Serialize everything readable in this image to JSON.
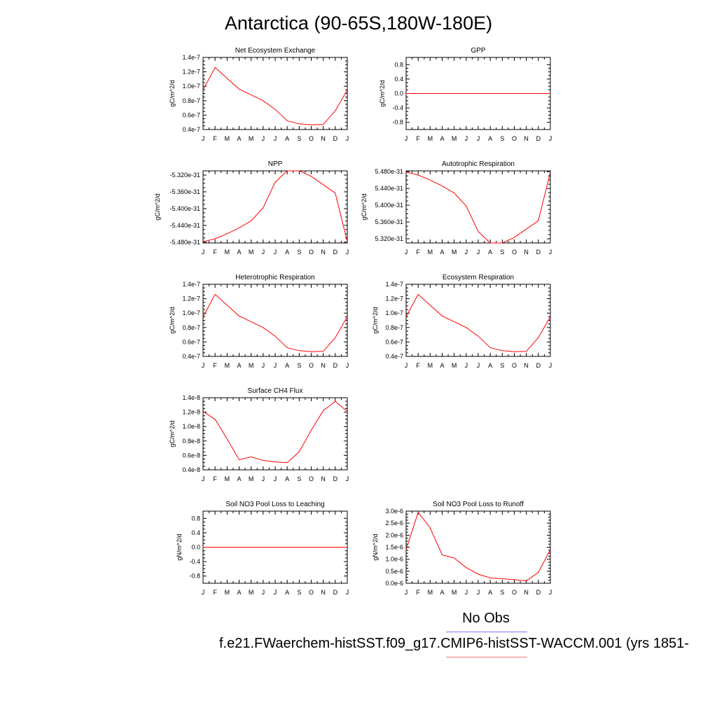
{
  "page": {
    "title": "Antarctica (90-65S,180W-180E)",
    "legend_obs": "No Obs",
    "legend_case": "f.e21.FWaerchem-histSST.f09_g17.CMIP6-histSST-WACCM.001 (yrs 1851-",
    "obs_color": "#7b7bef",
    "case_color": "#ef7b7b",
    "line_color": "#ff0000"
  },
  "chart_data": [
    {
      "type": "line",
      "title": "Net Ecosystem Exchange",
      "ylabel": "gC/m^2/d",
      "categories": [
        "J",
        "F",
        "M",
        "A",
        "M",
        "J",
        "J",
        "A",
        "S",
        "O",
        "N",
        "D",
        "J"
      ],
      "y_tick_labels": [
        "0.4e-7",
        "0.6e-7",
        "0.8e-7",
        "1.0e-7",
        "1.2e-7",
        "1.4e-7"
      ],
      "y_ticks": [
        4e-08,
        6e-08,
        8e-08,
        1e-07,
        1.2e-07,
        1.4e-07
      ],
      "ylim": [
        4e-08,
        1.4e-07
      ],
      "series": [
        {
          "values": [
            9.5e-08,
            1.26e-07,
            1.11e-07,
            9.6e-08,
            8.8e-08,
            8e-08,
            6.8e-08,
            5.2e-08,
            4.8e-08,
            4.65e-08,
            4.7e-08,
            6.6e-08,
            9.5e-08
          ]
        }
      ]
    },
    {
      "type": "line",
      "title": "GPP",
      "ylabel": "gC/m^2/d",
      "categories": [
        "J",
        "F",
        "M",
        "A",
        "M",
        "J",
        "J",
        "A",
        "S",
        "O",
        "N",
        "D",
        "J"
      ],
      "y_tick_labels": [
        "-0.8",
        "-0.4",
        "0.0",
        "0.4",
        "0.8"
      ],
      "y_ticks": [
        -0.8,
        -0.4,
        0.0,
        0.4,
        0.8
      ],
      "ylim": [
        -1.0,
        1.0
      ],
      "series": [
        {
          "values": [
            0,
            0,
            0,
            0,
            0,
            0,
            0,
            0,
            0,
            0,
            0,
            0,
            0
          ]
        }
      ]
    },
    {
      "type": "line",
      "title": "NPP",
      "ylabel": "gC/m^2/d",
      "categories": [
        "J",
        "F",
        "M",
        "A",
        "M",
        "J",
        "J",
        "A",
        "S",
        "O",
        "N",
        "D",
        "J"
      ],
      "y_tick_labels": [
        "-5.480e-31",
        "-5.440e-31",
        "-5.400e-31",
        "-5.360e-31",
        "-5.320e-31"
      ],
      "y_ticks": [
        -5.48e-31,
        -5.44e-31,
        -5.4e-31,
        -5.36e-31,
        -5.32e-31
      ],
      "ylim": [
        -5.482e-31,
        -5.31e-31
      ],
      "series": [
        {
          "values": [
            -5.479e-31,
            -5.472e-31,
            -5.46e-31,
            -5.446e-31,
            -5.429e-31,
            -5.398e-31,
            -5.337e-31,
            -5.31e-31,
            -5.31e-31,
            -5.323e-31,
            -5.343e-31,
            -5.363e-31,
            -5.479e-31
          ]
        }
      ]
    },
    {
      "type": "line",
      "title": "Autotrophic Respiration",
      "ylabel": "gC/m^2/d",
      "categories": [
        "J",
        "F",
        "M",
        "A",
        "M",
        "J",
        "J",
        "A",
        "S",
        "O",
        "N",
        "D",
        "J"
      ],
      "y_tick_labels": [
        "5.320e-31",
        "5.360e-31",
        "5.400e-31",
        "5.440e-31",
        "5.480e-31"
      ],
      "y_ticks": [
        5.32e-31,
        5.36e-31,
        5.4e-31,
        5.44e-31,
        5.48e-31
      ],
      "ylim": [
        5.31e-31,
        5.482e-31
      ],
      "series": [
        {
          "values": [
            5.479e-31,
            5.472e-31,
            5.46e-31,
            5.446e-31,
            5.429e-31,
            5.398e-31,
            5.337e-31,
            5.31e-31,
            5.31e-31,
            5.323e-31,
            5.343e-31,
            5.363e-31,
            5.479e-31
          ]
        }
      ]
    },
    {
      "type": "line",
      "title": "Heterotrophic Respiration",
      "ylabel": "gC/m^2/d",
      "categories": [
        "J",
        "F",
        "M",
        "A",
        "M",
        "J",
        "J",
        "A",
        "S",
        "O",
        "N",
        "D",
        "J"
      ],
      "y_tick_labels": [
        "0.4e-7",
        "0.6e-7",
        "0.8e-7",
        "1.0e-7",
        "1.2e-7",
        "1.4e-7"
      ],
      "y_ticks": [
        4e-08,
        6e-08,
        8e-08,
        1e-07,
        1.2e-07,
        1.4e-07
      ],
      "ylim": [
        4e-08,
        1.4e-07
      ],
      "series": [
        {
          "values": [
            9.5e-08,
            1.26e-07,
            1.11e-07,
            9.6e-08,
            8.8e-08,
            8e-08,
            6.8e-08,
            5.2e-08,
            4.8e-08,
            4.65e-08,
            4.7e-08,
            6.6e-08,
            9.5e-08
          ]
        }
      ]
    },
    {
      "type": "line",
      "title": "Ecosystem Respiration",
      "ylabel": "gC/m^2/d",
      "categories": [
        "J",
        "F",
        "M",
        "A",
        "M",
        "J",
        "J",
        "A",
        "S",
        "O",
        "N",
        "D",
        "J"
      ],
      "y_tick_labels": [
        "0.4e-7",
        "0.6e-7",
        "0.8e-7",
        "1.0e-7",
        "1.2e-7",
        "1.4e-7"
      ],
      "y_ticks": [
        4e-08,
        6e-08,
        8e-08,
        1e-07,
        1.2e-07,
        1.4e-07
      ],
      "ylim": [
        4e-08,
        1.4e-07
      ],
      "series": [
        {
          "values": [
            9.5e-08,
            1.26e-07,
            1.11e-07,
            9.6e-08,
            8.8e-08,
            8e-08,
            6.8e-08,
            5.2e-08,
            4.8e-08,
            4.65e-08,
            4.7e-08,
            6.6e-08,
            9.5e-08
          ]
        }
      ]
    },
    {
      "type": "line",
      "title": "Surface CH4 Flux",
      "ylabel": "gC/m^2/d",
      "categories": [
        "J",
        "F",
        "M",
        "A",
        "M",
        "J",
        "J",
        "A",
        "S",
        "O",
        "N",
        "D",
        "J"
      ],
      "y_tick_labels": [
        "0.4e-8",
        "0.6e-8",
        "0.8e-8",
        "1.0e-8",
        "1.2e-8",
        "1.4e-8"
      ],
      "y_ticks": [
        4e-09,
        6e-09,
        8e-09,
        1e-08,
        1.2e-08,
        1.4e-08
      ],
      "ylim": [
        4e-09,
        1.4e-08
      ],
      "series": [
        {
          "values": [
            1.21e-08,
            1.1e-08,
            8.3e-09,
            5.4e-09,
            5.8e-09,
            5.3e-09,
            5.1e-09,
            5e-09,
            6.5e-09,
            9.5e-09,
            1.22e-08,
            1.35e-08,
            1.21e-08
          ]
        }
      ]
    },
    null,
    {
      "type": "line",
      "title": "Soil NO3 Pool Loss to Leaching",
      "ylabel": "gN/m^2/d",
      "categories": [
        "J",
        "F",
        "M",
        "A",
        "M",
        "J",
        "J",
        "A",
        "S",
        "O",
        "N",
        "D",
        "J"
      ],
      "y_tick_labels": [
        "-0.8",
        "-0.4",
        "0.0",
        "0.4",
        "0.8"
      ],
      "y_ticks": [
        -0.8,
        -0.4,
        0.0,
        0.4,
        0.8
      ],
      "ylim": [
        -1.0,
        1.0
      ],
      "series": [
        {
          "values": [
            0,
            0,
            0,
            0,
            0,
            0,
            0,
            0,
            0,
            0,
            0,
            0,
            0
          ]
        }
      ]
    },
    {
      "type": "line",
      "title": "Soil NO3 Pool Loss to Runoff",
      "ylabel": "gN/m^2/d",
      "categories": [
        "J",
        "F",
        "M",
        "A",
        "M",
        "J",
        "J",
        "A",
        "S",
        "O",
        "N",
        "D",
        "J"
      ],
      "y_tick_labels": [
        "0.0e-6",
        "0.5e-6",
        "1.0e-6",
        "1.5e-6",
        "2.0e-6",
        "2.5e-6",
        "3.0e-6"
      ],
      "y_ticks": [
        0,
        5e-07,
        1e-06,
        1.5e-06,
        2e-06,
        2.5e-06,
        3e-06
      ],
      "ylim": [
        0,
        3e-06
      ],
      "series": [
        {
          "values": [
            1.4e-06,
            2.95e-06,
            2.3e-06,
            1.18e-06,
            1.05e-06,
            6.5e-07,
            3.8e-07,
            2.2e-07,
            1.9e-07,
            1.5e-07,
            1e-07,
            4.5e-07,
            1.4e-06
          ]
        }
      ]
    }
  ]
}
